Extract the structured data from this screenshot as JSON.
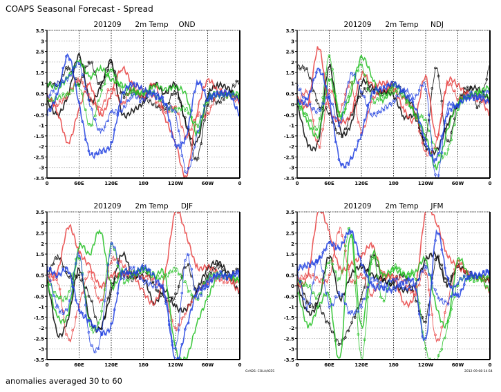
{
  "page": {
    "title": "COAPS Seasonal Forecast - Spread",
    "footer_note": "anomalies averaged 30 to 60",
    "credit_left": "GrADS: COLA/IGES",
    "credit_right": "2012-09-08-14:54"
  },
  "chart_data": [
    {
      "type": "line",
      "panel": "top-left",
      "title": "201209      2m Temp     OND",
      "title_parts": {
        "init": "201209",
        "variable": "2m Temp",
        "season": "OND"
      },
      "xlabel": "",
      "ylabel": "",
      "ylim": [
        -3.5,
        3.5
      ],
      "y_ticks": [
        "3.5",
        "3",
        "2.5",
        "2",
        "1.5",
        "1",
        "0.5",
        "0",
        "-0.5",
        "-1",
        "-1.5",
        "-2",
        "-2.5",
        "-3",
        "-3.5"
      ],
      "x_ticks": [
        "0",
        "60E",
        "120E",
        "180",
        "120W",
        "60W",
        "0"
      ],
      "grid": true,
      "x": [
        0,
        20,
        40,
        60,
        80,
        100,
        120,
        140,
        160,
        180,
        200,
        220,
        240,
        260,
        280,
        300,
        320,
        340,
        360
      ],
      "series": [
        {
          "name": "black-1",
          "color": "#000000",
          "values": [
            0.1,
            -0.5,
            0.5,
            2.3,
            0.2,
            0.8,
            2.0,
            -0.4,
            -0.3,
            0.1,
            1.0,
            0.5,
            0.9,
            -1.0,
            -1.8,
            0.4,
            0.9,
            0.7,
            0.2
          ]
        },
        {
          "name": "black-2",
          "color": "#000000",
          "values": [
            0.9,
            1.0,
            1.7,
            1.0,
            2.0,
            0.9,
            1.9,
            0.5,
            0.6,
            0.3,
            0.0,
            -0.2,
            0.6,
            -0.9,
            -2.6,
            0.0,
            0.1,
            0.6,
            1.1
          ]
        },
        {
          "name": "red-1",
          "color": "#e84040",
          "values": [
            0.4,
            -0.4,
            -1.8,
            -0.2,
            0.9,
            -0.5,
            0.5,
            1.7,
            0.9,
            0.3,
            1.0,
            -0.6,
            -1.8,
            -3.4,
            -0.4,
            1.1,
            0.6,
            0.5,
            0.3
          ]
        },
        {
          "name": "red-2",
          "color": "#e84040",
          "values": [
            0.3,
            0.0,
            0.5,
            1.2,
            0.3,
            -0.2,
            0.8,
            0.0,
            0.8,
            0.7,
            0.3,
            -0.3,
            -0.2,
            -1.5,
            -0.5,
            -0.5,
            0.6,
            0.4,
            0.1
          ]
        },
        {
          "name": "green-1",
          "color": "#20c020",
          "values": [
            1.0,
            0.8,
            1.3,
            2.0,
            1.3,
            1.7,
            1.2,
            0.9,
            0.7,
            0.5,
            0.9,
            0.7,
            0.8,
            0.4,
            -1.4,
            0.3,
            0.4,
            0.5,
            0.5
          ]
        },
        {
          "name": "green-2",
          "color": "#20c020",
          "values": [
            0.2,
            0.3,
            0.5,
            0.9,
            -1.0,
            0.5,
            1.6,
            0.7,
            0.5,
            0.6,
            0.5,
            0.0,
            -0.3,
            -0.2,
            -1.0,
            0.2,
            0.5,
            0.4,
            0.3
          ]
        },
        {
          "name": "blue-1",
          "color": "#2040e0",
          "values": [
            -0.4,
            0.5,
            2.3,
            0.0,
            -2.3,
            -2.2,
            -1.9,
            0.4,
            0.9,
            0.7,
            0.4,
            0.1,
            -1.9,
            -1.5,
            1.0,
            0.3,
            0.5,
            0.5,
            -0.5
          ]
        },
        {
          "name": "blue-2",
          "color": "#2040e0",
          "values": [
            0.3,
            1.0,
            1.2,
            1.9,
            0.0,
            -1.3,
            -0.4,
            -0.3,
            0.4,
            0.2,
            0.6,
            0.0,
            -0.5,
            -3.2,
            -1.5,
            0.3,
            0.4,
            0.5,
            0.2
          ]
        }
      ]
    },
    {
      "type": "line",
      "panel": "top-right",
      "title": "201209      2m Temp     NDJ",
      "title_parts": {
        "init": "201209",
        "variable": "2m Temp",
        "season": "NDJ"
      },
      "xlabel": "",
      "ylabel": "",
      "ylim": [
        -3.5,
        3.5
      ],
      "y_ticks": [
        "3.5",
        "3",
        "2.5",
        "2",
        "1.5",
        "1",
        "0.5",
        "0",
        "-0.5",
        "-1",
        "-1.5",
        "-2",
        "-2.5",
        "-3",
        "-3.5"
      ],
      "x_ticks": [
        "0",
        "60E",
        "120E",
        "180",
        "120W",
        "60W",
        "0"
      ],
      "grid": true,
      "x": [
        0,
        20,
        40,
        60,
        80,
        100,
        120,
        140,
        160,
        180,
        200,
        220,
        240,
        260,
        280,
        300,
        320,
        340,
        360
      ],
      "series": [
        {
          "name": "black-1",
          "color": "#000000",
          "values": [
            -0.1,
            -1.9,
            -1.7,
            1.8,
            -1.2,
            -1.0,
            1.0,
            0.8,
            0.6,
            0.4,
            -0.6,
            -0.6,
            -2.0,
            -2.2,
            -1.0,
            0.0,
            0.7,
            0.7,
            0.2
          ]
        },
        {
          "name": "black-2",
          "color": "#000000",
          "values": [
            1.8,
            1.5,
            0.0,
            -0.4,
            -1.5,
            -0.6,
            0.5,
            0.7,
            0.5,
            1.0,
            0.5,
            -0.3,
            -1.6,
            1.7,
            -1.8,
            0.0,
            0.8,
            -0.1,
            1.8
          ]
        },
        {
          "name": "red-1",
          "color": "#e84040",
          "values": [
            0.3,
            0.0,
            2.7,
            -0.2,
            -0.8,
            -0.5,
            1.4,
            0.9,
            1.0,
            0.8,
            -0.3,
            -0.7,
            1.3,
            -1.6,
            1.0,
            0.9,
            0.4,
            0.4,
            -0.5
          ]
        },
        {
          "name": "red-2",
          "color": "#e84040",
          "values": [
            0.1,
            0.5,
            -2.0,
            0.6,
            -0.3,
            1.0,
            -1.3,
            0.2,
            0.6,
            0.7,
            0.2,
            -0.4,
            -2.3,
            -1.8,
            0.9,
            0.3,
            0.5,
            0.2,
            0.1
          ]
        },
        {
          "name": "green-1",
          "color": "#20c020",
          "values": [
            0.2,
            -0.9,
            -1.4,
            1.2,
            -0.5,
            0.5,
            2.2,
            1.3,
            0.2,
            0.9,
            0.4,
            -0.5,
            -1.5,
            -3.0,
            -1.3,
            0.1,
            0.4,
            0.6,
            0.8
          ]
        },
        {
          "name": "green-2",
          "color": "#20c020",
          "values": [
            0.0,
            -0.6,
            -1.0,
            2.2,
            -0.6,
            0.8,
            1.8,
            0.2,
            0.4,
            0.6,
            0.3,
            -0.4,
            -0.8,
            -2.2,
            -2.3,
            -0.3,
            0.4,
            0.5,
            0.3
          ]
        },
        {
          "name": "blue-1",
          "color": "#2040e0",
          "values": [
            0.1,
            0.3,
            1.6,
            0.2,
            -2.7,
            -2.6,
            -1.4,
            0.5,
            0.7,
            1.0,
            0.5,
            -0.1,
            -1.8,
            -2.6,
            -0.5,
            0.0,
            0.3,
            0.3,
            0.1
          ]
        },
        {
          "name": "blue-2",
          "color": "#2040e0",
          "values": [
            0.8,
            0.0,
            -0.3,
            0.3,
            -0.9,
            1.4,
            0.6,
            -0.5,
            -0.2,
            0.1,
            0.7,
            0.3,
            0.8,
            -3.6,
            -0.2,
            -0.1,
            0.5,
            0.4,
            0.6
          ]
        }
      ]
    },
    {
      "type": "line",
      "panel": "bottom-left",
      "title": "201209      2m Temp     DJF",
      "title_parts": {
        "init": "201209",
        "variable": "2m Temp",
        "season": "DJF"
      },
      "xlabel": "",
      "ylabel": "",
      "ylim": [
        -3.5,
        3.5
      ],
      "y_ticks": [
        "3.5",
        "3",
        "2.5",
        "2",
        "1.5",
        "1",
        "0.5",
        "0",
        "-0.5",
        "-1",
        "-1.5",
        "-2",
        "-2.5",
        "-3",
        "-3.5"
      ],
      "x_ticks": [
        "0",
        "60E",
        "120E",
        "180",
        "120W",
        "60W",
        "0"
      ],
      "grid": true,
      "x": [
        0,
        20,
        40,
        60,
        80,
        100,
        120,
        140,
        160,
        180,
        200,
        220,
        240,
        260,
        280,
        300,
        320,
        340,
        360
      ],
      "series": [
        {
          "name": "black-1",
          "color": "#000000",
          "values": [
            0.2,
            -2.3,
            -1.5,
            0.8,
            -1.6,
            -2.0,
            -0.3,
            1.5,
            0.5,
            0.4,
            -0.8,
            -0.2,
            -1.0,
            -1.1,
            -0.2,
            0.8,
            1.1,
            0.5,
            -0.3
          ]
        },
        {
          "name": "black-2",
          "color": "#000000",
          "values": [
            0.5,
            1.4,
            0.5,
            0.4,
            -0.5,
            -2.0,
            0.0,
            0.6,
            0.3,
            0.8,
            0.0,
            -0.6,
            -0.5,
            1.0,
            -0.2,
            0.5,
            0.9,
            0.5,
            0.8
          ]
        },
        {
          "name": "red-1",
          "color": "#e84040",
          "values": [
            0.5,
            0.7,
            2.8,
            1.6,
            0.9,
            0.0,
            0.5,
            0.5,
            0.5,
            -0.3,
            -0.8,
            0.5,
            3.5,
            2.4,
            0.9,
            0.9,
            0.6,
            0.3,
            -0.3
          ]
        },
        {
          "name": "red-2",
          "color": "#e84040",
          "values": [
            0.2,
            0.2,
            -2.6,
            -0.9,
            0.6,
            -0.8,
            1.2,
            1.0,
            0.6,
            0.4,
            0.3,
            -0.4,
            -2.0,
            -1.2,
            -0.3,
            0.2,
            0.3,
            0.2,
            0.2
          ]
        },
        {
          "name": "green-1",
          "color": "#20c020",
          "values": [
            0.1,
            -1.5,
            -1.3,
            1.8,
            1.5,
            2.6,
            0.0,
            0.7,
            0.6,
            0.8,
            0.4,
            0.5,
            -3.0,
            -3.4,
            -1.8,
            -0.6,
            0.5,
            0.4,
            0.3
          ]
        },
        {
          "name": "green-2",
          "color": "#20c020",
          "values": [
            0.3,
            -0.5,
            -0.4,
            1.4,
            -1.9,
            -1.5,
            1.9,
            0.3,
            0.4,
            0.8,
            0.5,
            0.4,
            0.8,
            0.0,
            -0.6,
            0.4,
            0.5,
            0.4,
            0.2
          ]
        },
        {
          "name": "blue-1",
          "color": "#2040e0",
          "values": [
            0.8,
            0.5,
            0.7,
            -1.1,
            -1.7,
            -2.2,
            -1.9,
            0.6,
            0.5,
            0.9,
            0.4,
            -0.5,
            -3.5,
            -2.0,
            -0.3,
            0.0,
            0.6,
            0.4,
            0.7
          ]
        },
        {
          "name": "blue-2",
          "color": "#2040e0",
          "values": [
            0.6,
            -1.0,
            -1.0,
            1.5,
            -2.6,
            -2.5,
            1.9,
            0.5,
            0.8,
            0.2,
            0.0,
            -0.3,
            -3.0,
            1.4,
            -0.5,
            0.3,
            0.4,
            0.5,
            0.5
          ]
        }
      ]
    },
    {
      "type": "line",
      "panel": "bottom-right",
      "title": "201209      2m Temp     JFM",
      "title_parts": {
        "init": "201209",
        "variable": "2m Temp",
        "season": "JFM"
      },
      "xlabel": "",
      "ylabel": "",
      "ylim": [
        -3.5,
        3.5
      ],
      "y_ticks": [
        "3.5",
        "3",
        "2.5",
        "2",
        "1.5",
        "1",
        "0.5",
        "0",
        "-0.5",
        "-1",
        "-1.5",
        "-2",
        "-2.5",
        "-3",
        "-3.5"
      ],
      "x_ticks": [
        "0",
        "60E",
        "120E",
        "180",
        "120W",
        "60W",
        "0"
      ],
      "grid": true,
      "x": [
        0,
        20,
        40,
        60,
        80,
        100,
        120,
        140,
        160,
        180,
        200,
        220,
        240,
        260,
        280,
        300,
        320,
        340,
        360
      ],
      "series": [
        {
          "name": "black-1",
          "color": "#000000",
          "values": [
            0.0,
            -1.3,
            -0.7,
            1.4,
            -0.6,
            0.5,
            0.9,
            0.5,
            0.3,
            0.0,
            -0.2,
            0.0,
            1.2,
            1.4,
            0.0,
            0.9,
            0.5,
            0.4,
            0.3
          ]
        },
        {
          "name": "black-2",
          "color": "#000000",
          "values": [
            0.5,
            -0.8,
            -1.0,
            -1.9,
            -2.7,
            -1.8,
            -0.6,
            1.4,
            0.3,
            0.2,
            0.5,
            -0.5,
            -1.6,
            1.3,
            0.2,
            0.9,
            0.6,
            0.4,
            0.2
          ]
        },
        {
          "name": "red-1",
          "color": "#e84040",
          "values": [
            0.0,
            0.5,
            3.5,
            2.5,
            0.8,
            1.0,
            1.4,
            1.9,
            0.5,
            0.4,
            -0.8,
            -0.3,
            3.5,
            3.0,
            1.5,
            0.9,
            0.6,
            0.4,
            0.3
          ]
        },
        {
          "name": "red-2",
          "color": "#e84040",
          "values": [
            0.3,
            0.5,
            0.3,
            0.4,
            2.7,
            0.3,
            0.5,
            -0.4,
            0.5,
            0.4,
            0.2,
            -0.4,
            0.7,
            -2.6,
            -0.9,
            1.1,
            0.5,
            0.4,
            -0.3
          ]
        },
        {
          "name": "green-1",
          "color": "#20c020",
          "values": [
            -0.3,
            -1.9,
            -1.0,
            -0.5,
            -3.5,
            2.5,
            -2.0,
            1.5,
            0.5,
            0.8,
            0.5,
            0.6,
            1.2,
            -1.0,
            -1.8,
            1.2,
            0.5,
            0.4,
            -0.2
          ]
        },
        {
          "name": "green-2",
          "color": "#20c020",
          "values": [
            0.2,
            0.0,
            -0.5,
            1.2,
            0.3,
            2.6,
            -3.5,
            1.3,
            -0.7,
            0.9,
            0.5,
            0.4,
            -3.0,
            -3.5,
            -2.0,
            0.1,
            0.3,
            0.3,
            0.4
          ]
        },
        {
          "name": "blue-1",
          "color": "#2040e0",
          "values": [
            0.8,
            1.0,
            1.2,
            2.0,
            1.8,
            2.6,
            1.1,
            0.0,
            -0.1,
            -0.2,
            0.2,
            0.0,
            -2.6,
            2.5,
            0.4,
            -0.5,
            0.5,
            0.5,
            0.7
          ]
        },
        {
          "name": "blue-2",
          "color": "#2040e0",
          "values": [
            0.6,
            -1.0,
            1.3,
            -0.9,
            -0.4,
            -1.3,
            -0.9,
            0.3,
            0.0,
            0.3,
            -0.1,
            0.0,
            0.9,
            -0.4,
            -0.8,
            0.2,
            0.4,
            0.5,
            0.6
          ]
        }
      ]
    }
  ]
}
